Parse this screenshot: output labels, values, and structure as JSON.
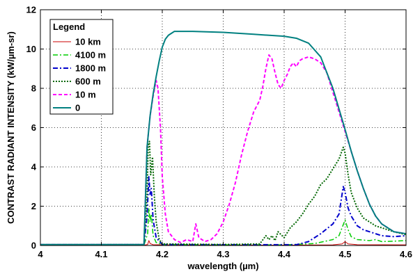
{
  "chart_data": {
    "type": "line",
    "title": "",
    "xlabel": "wavelength (µm)",
    "ylabel": "CONTRAST RADIANT INTENSITY (kW/µm-sr)",
    "xlim": [
      4.0,
      4.6
    ],
    "ylim": [
      0,
      12
    ],
    "x_ticks": [
      4.0,
      4.1,
      4.2,
      4.3,
      4.4,
      4.5,
      4.6
    ],
    "x_tick_labels": [
      "4",
      "4.1",
      "4.2",
      "4.3",
      "4.4",
      "4.5",
      "4.6"
    ],
    "y_ticks": [
      0,
      2,
      4,
      6,
      8,
      10,
      12
    ],
    "y_tick_labels": [
      "0",
      "2",
      "4",
      "6",
      "8",
      "10",
      "12"
    ],
    "grid": true,
    "grid_style": "dotted",
    "legend": {
      "title": "Legend",
      "placement": "top-left"
    },
    "series": [
      {
        "name": "10 km",
        "color": "#cc0000",
        "dash": "solid",
        "width": 1,
        "points": [
          [
            4.0,
            0.02
          ],
          [
            4.17,
            0.02
          ],
          [
            4.176,
            0.05
          ],
          [
            4.178,
            0.25
          ],
          [
            4.18,
            0.1
          ],
          [
            4.185,
            0.04
          ],
          [
            4.2,
            0.03
          ],
          [
            4.3,
            0.02
          ],
          [
            4.4,
            0.02
          ],
          [
            4.48,
            0.03
          ],
          [
            4.495,
            0.08
          ],
          [
            4.5,
            0.2
          ],
          [
            4.505,
            0.08
          ],
          [
            4.52,
            0.04
          ],
          [
            4.6,
            0.03
          ]
        ]
      },
      {
        "name": "4100 m",
        "color": "#00cc00",
        "dash": "dashdot",
        "width": 1.5,
        "points": [
          [
            4.0,
            0.02
          ],
          [
            4.17,
            0.03
          ],
          [
            4.176,
            0.6
          ],
          [
            4.178,
            1.9
          ],
          [
            4.18,
            1.2
          ],
          [
            4.182,
            1.6
          ],
          [
            4.185,
            0.5
          ],
          [
            4.19,
            0.15
          ],
          [
            4.2,
            0.05
          ],
          [
            4.3,
            0.03
          ],
          [
            4.4,
            0.03
          ],
          [
            4.45,
            0.1
          ],
          [
            4.48,
            0.3
          ],
          [
            4.49,
            0.5
          ],
          [
            4.495,
            0.9
          ],
          [
            4.5,
            1.3
          ],
          [
            4.505,
            0.8
          ],
          [
            4.51,
            0.45
          ],
          [
            4.52,
            0.3
          ],
          [
            4.54,
            0.25
          ],
          [
            4.55,
            0.3
          ],
          [
            4.56,
            0.2
          ],
          [
            4.58,
            0.22
          ],
          [
            4.6,
            0.25
          ]
        ]
      },
      {
        "name": "1800 m",
        "color": "#0000cc",
        "dash": "dashdot",
        "width": 2,
        "points": [
          [
            4.0,
            0.03
          ],
          [
            4.17,
            0.04
          ],
          [
            4.175,
            1.5
          ],
          [
            4.178,
            3.5
          ],
          [
            4.18,
            2.6
          ],
          [
            4.182,
            2.9
          ],
          [
            4.185,
            1.3
          ],
          [
            4.19,
            0.4
          ],
          [
            4.2,
            0.05
          ],
          [
            4.3,
            0.04
          ],
          [
            4.42,
            0.04
          ],
          [
            4.44,
            0.2
          ],
          [
            4.46,
            0.6
          ],
          [
            4.48,
            1.1
          ],
          [
            4.49,
            1.6
          ],
          [
            4.497,
            3.0
          ],
          [
            4.5,
            2.7
          ],
          [
            4.505,
            1.9
          ],
          [
            4.51,
            1.5
          ],
          [
            4.52,
            1.0
          ],
          [
            4.53,
            0.8
          ],
          [
            4.54,
            0.7
          ],
          [
            4.56,
            0.5
          ],
          [
            4.58,
            0.45
          ],
          [
            4.6,
            0.5
          ]
        ]
      },
      {
        "name": "600 m",
        "color": "#006600",
        "dash": "dotted",
        "width": 2,
        "points": [
          [
            4.0,
            0.04
          ],
          [
            4.17,
            0.05
          ],
          [
            4.175,
            2.5
          ],
          [
            4.177,
            5.1
          ],
          [
            4.179,
            5.3
          ],
          [
            4.181,
            3.6
          ],
          [
            4.184,
            4.5
          ],
          [
            4.187,
            2.5
          ],
          [
            4.19,
            1.2
          ],
          [
            4.195,
            0.3
          ],
          [
            4.2,
            0.08
          ],
          [
            4.3,
            0.05
          ],
          [
            4.36,
            0.08
          ],
          [
            4.37,
            0.5
          ],
          [
            4.375,
            0.3
          ],
          [
            4.38,
            0.5
          ],
          [
            4.385,
            0.25
          ],
          [
            4.39,
            0.7
          ],
          [
            4.4,
            0.4
          ],
          [
            4.41,
            0.9
          ],
          [
            4.42,
            1.2
          ],
          [
            4.43,
            1.6
          ],
          [
            4.44,
            2.1
          ],
          [
            4.45,
            2.5
          ],
          [
            4.46,
            3.1
          ],
          [
            4.47,
            3.4
          ],
          [
            4.48,
            3.9
          ],
          [
            4.49,
            4.4
          ],
          [
            4.497,
            5.0
          ],
          [
            4.5,
            4.7
          ],
          [
            4.505,
            3.6
          ],
          [
            4.51,
            2.7
          ],
          [
            4.52,
            1.9
          ],
          [
            4.53,
            1.4
          ],
          [
            4.54,
            1.2
          ],
          [
            4.55,
            1.0
          ],
          [
            4.56,
            0.9
          ],
          [
            4.58,
            0.7
          ],
          [
            4.6,
            0.55
          ]
        ]
      },
      {
        "name": "10 m",
        "color": "#ff00ff",
        "dash": "dashed",
        "width": 2,
        "points": [
          [
            4.0,
            0.05
          ],
          [
            4.17,
            0.05
          ],
          [
            4.175,
            5.0
          ],
          [
            4.18,
            6.6
          ],
          [
            4.185,
            7.6
          ],
          [
            4.19,
            8.4
          ],
          [
            4.193,
            8.0
          ],
          [
            4.197,
            6.0
          ],
          [
            4.2,
            3.5
          ],
          [
            4.205,
            1.6
          ],
          [
            4.21,
            0.7
          ],
          [
            4.22,
            0.3
          ],
          [
            4.23,
            0.15
          ],
          [
            4.24,
            0.3
          ],
          [
            4.25,
            0.2
          ],
          [
            4.255,
            1.1
          ],
          [
            4.26,
            0.4
          ],
          [
            4.27,
            0.2
          ],
          [
            4.28,
            0.3
          ],
          [
            4.29,
            0.6
          ],
          [
            4.3,
            1.2
          ],
          [
            4.31,
            2.1
          ],
          [
            4.32,
            3.2
          ],
          [
            4.33,
            4.6
          ],
          [
            4.34,
            5.8
          ],
          [
            4.35,
            6.8
          ],
          [
            4.36,
            7.4
          ],
          [
            4.365,
            8.1
          ],
          [
            4.37,
            9.0
          ],
          [
            4.375,
            9.7
          ],
          [
            4.38,
            9.5
          ],
          [
            4.385,
            8.8
          ],
          [
            4.39,
            8.2
          ],
          [
            4.395,
            8.0
          ],
          [
            4.4,
            8.4
          ],
          [
            4.405,
            8.7
          ],
          [
            4.41,
            9.1
          ],
          [
            4.415,
            9.3
          ],
          [
            4.42,
            9.1
          ],
          [
            4.425,
            9.4
          ],
          [
            4.43,
            9.5
          ],
          [
            4.44,
            9.6
          ],
          [
            4.45,
            9.5
          ],
          [
            4.46,
            9.3
          ],
          [
            4.47,
            8.8
          ],
          [
            4.48,
            7.8
          ],
          [
            4.49,
            6.8
          ],
          [
            4.5,
            5.8
          ],
          [
            4.51,
            4.8
          ],
          [
            4.52,
            3.8
          ],
          [
            4.53,
            2.9
          ],
          [
            4.54,
            2.1
          ],
          [
            4.55,
            1.5
          ],
          [
            4.56,
            1.1
          ],
          [
            4.58,
            0.7
          ],
          [
            4.6,
            0.6
          ]
        ]
      },
      {
        "name": "0",
        "color": "#008080",
        "dash": "solid",
        "width": 2,
        "points": [
          [
            4.0,
            0.05
          ],
          [
            4.17,
            0.05
          ],
          [
            4.175,
            5.0
          ],
          [
            4.18,
            6.6
          ],
          [
            4.185,
            7.7
          ],
          [
            4.19,
            8.6
          ],
          [
            4.195,
            9.4
          ],
          [
            4.2,
            10.1
          ],
          [
            4.205,
            10.5
          ],
          [
            4.21,
            10.7
          ],
          [
            4.215,
            10.8
          ],
          [
            4.22,
            10.9
          ],
          [
            4.25,
            10.9
          ],
          [
            4.3,
            10.85
          ],
          [
            4.35,
            10.75
          ],
          [
            4.4,
            10.65
          ],
          [
            4.42,
            10.55
          ],
          [
            4.44,
            10.3
          ],
          [
            4.46,
            9.6
          ],
          [
            4.48,
            8.0
          ],
          [
            4.5,
            5.9
          ],
          [
            4.51,
            4.8
          ],
          [
            4.52,
            3.8
          ],
          [
            4.53,
            2.9
          ],
          [
            4.54,
            2.1
          ],
          [
            4.55,
            1.5
          ],
          [
            4.56,
            1.1
          ],
          [
            4.58,
            0.7
          ],
          [
            4.6,
            0.6
          ]
        ]
      }
    ]
  }
}
